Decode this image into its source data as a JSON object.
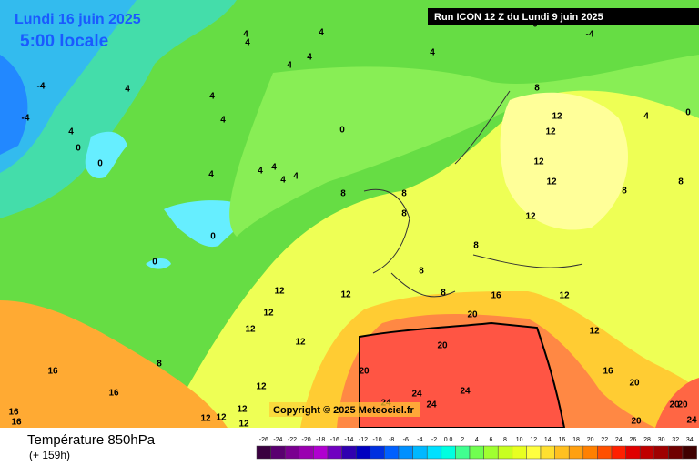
{
  "header": {
    "title": "Lundi 16 juin 2025",
    "local_time": "5:00 locale",
    "run": "Run ICON 12 Z du Lundi 9 juin 2025"
  },
  "copyright": "Copyright © 2025 Meteociel.fr",
  "footer": {
    "parameter": "Température 850hPa",
    "lead_time": "(+ 159h)"
  },
  "legend": {
    "labels": [
      "-26",
      "-24",
      "-22",
      "-20",
      "-18",
      "-16",
      "-14",
      "-12",
      "-10",
      "-8",
      "-6",
      "-4",
      "-2",
      "0.0",
      "2",
      "4",
      "6",
      "8",
      "10",
      "12",
      "14",
      "16",
      "18",
      "20",
      "22",
      "24",
      "26",
      "28",
      "30",
      "32",
      "34"
    ]
  },
  "map_labels": [
    "4",
    "4",
    "4",
    "4",
    "4",
    "4",
    "4",
    "4",
    "-4",
    "-4",
    "4",
    "0",
    "0",
    "0",
    "4",
    "4",
    "4",
    "4",
    "4",
    "4",
    "0",
    "0",
    "8",
    "8",
    "8",
    "8",
    "8",
    "8",
    "8",
    "12",
    "12",
    "12",
    "12",
    "12",
    "12",
    "12",
    "12",
    "12",
    "12",
    "16",
    "12",
    "12",
    "20",
    "20",
    "20",
    "24",
    "24",
    "24",
    "24",
    "16",
    "16",
    "16",
    "16",
    "12",
    "12",
    "16",
    "20",
    "20",
    "24",
    "20",
    "20",
    "8",
    "12",
    "12",
    "12",
    "8",
    "8",
    "4",
    "0",
    "-4",
    "0"
  ]
}
